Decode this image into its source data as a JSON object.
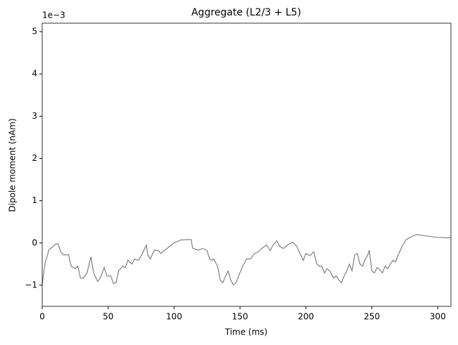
{
  "chart_data": {
    "type": "line",
    "title": "Aggregate (L2/3 + L5)",
    "x_label": "Time (ms)",
    "y_label": "Dipole moment (nAm)",
    "y_offset_label": "1e−3",
    "xlim": [
      0,
      310
    ],
    "xticks": [
      0,
      50,
      100,
      150,
      200,
      250,
      300
    ],
    "ylim": [
      -1.5,
      5.2
    ],
    "yticks": [
      {
        "value": -1,
        "label": "−1"
      },
      0,
      1,
      2,
      3,
      4,
      5
    ],
    "series": [
      {
        "color": "#808080",
        "x": [
          0,
          2,
          5,
          10,
          12,
          14,
          16,
          20,
          22,
          25,
          27,
          29,
          31,
          34,
          36,
          37,
          39,
          42,
          44,
          47,
          49,
          52,
          54,
          56,
          58,
          61,
          63,
          65,
          68,
          70,
          73,
          76,
          79,
          80,
          82,
          85,
          88,
          90,
          95,
          100,
          105,
          110,
          113,
          114,
          118,
          122,
          125,
          127,
          129,
          130,
          133,
          135,
          137,
          139,
          141,
          143,
          145,
          147,
          149,
          152,
          155,
          158,
          161,
          164,
          167,
          170,
          173,
          175,
          178,
          180,
          183,
          186,
          190,
          193,
          196,
          198,
          200,
          203,
          206,
          208,
          210,
          212,
          214,
          216,
          218,
          221,
          223,
          225,
          227,
          229,
          231,
          233,
          235,
          237,
          239,
          241,
          243,
          245,
          247,
          248,
          250,
          252,
          254,
          256,
          258,
          260,
          262,
          264,
          266,
          268,
          270,
          273,
          276,
          280,
          284,
          290,
          300,
          310
        ],
        "values": [
          -0.99,
          -0.5,
          -0.17,
          -0.03,
          -0.02,
          -0.21,
          -0.28,
          -0.28,
          -0.55,
          -0.61,
          -0.55,
          -0.83,
          -0.84,
          -0.71,
          -0.45,
          -0.33,
          -0.71,
          -0.91,
          -0.83,
          -0.58,
          -0.78,
          -0.78,
          -0.96,
          -0.94,
          -0.66,
          -0.55,
          -0.58,
          -0.41,
          -0.5,
          -0.38,
          -0.41,
          -0.25,
          -0.05,
          -0.28,
          -0.38,
          -0.17,
          -0.18,
          -0.25,
          -0.12,
          0,
          0.07,
          0.08,
          0.08,
          -0.12,
          -0.17,
          -0.13,
          -0.18,
          -0.38,
          -0.41,
          -0.38,
          -0.55,
          -0.88,
          -0.94,
          -0.78,
          -0.66,
          -0.88,
          -0.99,
          -0.94,
          -0.78,
          -0.55,
          -0.38,
          -0.38,
          -0.25,
          -0.21,
          -0.12,
          -0.05,
          -0.18,
          -0.05,
          0.05,
          -0.08,
          -0.13,
          -0.05,
          0.02,
          -0.08,
          -0.28,
          -0.41,
          -0.25,
          -0.3,
          -0.21,
          -0.48,
          -0.55,
          -0.55,
          -0.71,
          -0.61,
          -0.66,
          -0.83,
          -0.78,
          -0.88,
          -0.94,
          -0.78,
          -0.66,
          -0.5,
          -0.66,
          -0.28,
          -0.25,
          -0.5,
          -0.55,
          -0.38,
          -0.28,
          -0.17,
          -0.66,
          -0.71,
          -0.58,
          -0.63,
          -0.71,
          -0.55,
          -0.61,
          -0.5,
          -0.41,
          -0.45,
          -0.28,
          -0.08,
          0.08,
          0.15,
          0.2,
          0.17,
          0.13,
          0.12
        ]
      }
    ]
  }
}
